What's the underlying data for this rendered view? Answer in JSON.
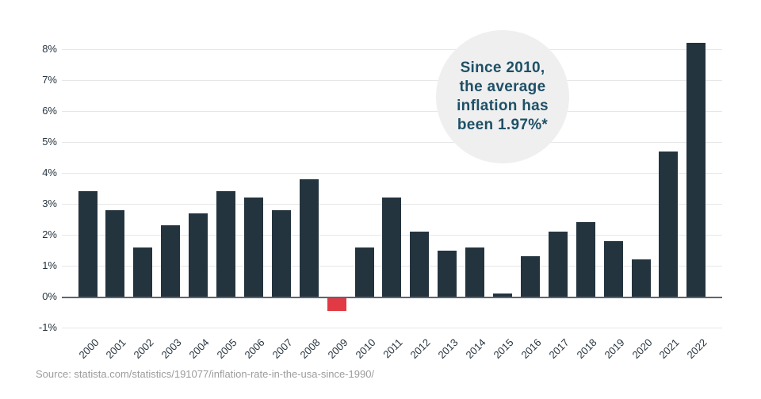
{
  "chart_data": {
    "type": "bar",
    "title": "",
    "xlabel": "",
    "ylabel": "",
    "categories": [
      "2000",
      "2001",
      "2002",
      "2003",
      "2004",
      "2005",
      "2006",
      "2007",
      "2008",
      "2009",
      "2010",
      "2011",
      "2012",
      "2013",
      "2014",
      "2015",
      "2016",
      "2017",
      "2018",
      "2019",
      "2020",
      "2021",
      "2022"
    ],
    "values": [
      3.4,
      2.8,
      1.6,
      2.3,
      2.7,
      3.4,
      3.2,
      2.8,
      3.8,
      -0.4,
      1.6,
      3.2,
      2.1,
      1.5,
      1.6,
      0.1,
      1.3,
      2.1,
      2.4,
      1.8,
      1.2,
      4.7,
      8.2
    ],
    "yticks": [
      {
        "label": "8%",
        "value": 8
      },
      {
        "label": "7%",
        "value": 7
      },
      {
        "label": "6%",
        "value": 6
      },
      {
        "label": "5%",
        "value": 5
      },
      {
        "label": "4%",
        "value": 4
      },
      {
        "label": "3%",
        "value": 3
      },
      {
        "label": "2%",
        "value": 2
      },
      {
        "label": "1%",
        "value": 1
      },
      {
        "label": "0%",
        "value": 0
      },
      {
        "label": "-1%",
        "value": -1
      }
    ],
    "ylim": [
      -1,
      8.5
    ],
    "grid": true,
    "legend_position": "none",
    "bar_color": "#24343f",
    "negative_bar_color": "#e13a44"
  },
  "annotation": {
    "lines": [
      "Since 2010,",
      "the average",
      "inflation has",
      "been 1.97%*"
    ],
    "background_color": "#efeff0",
    "text_color": "#1e5066"
  },
  "source": {
    "text": "Source: statista.com/statistics/191077/inflation-rate-in-the-usa-since-1990/"
  },
  "colors": {
    "gridline": "#e7e7e9",
    "zero_axis": "#5c666c",
    "axis_label": "#27343e"
  }
}
